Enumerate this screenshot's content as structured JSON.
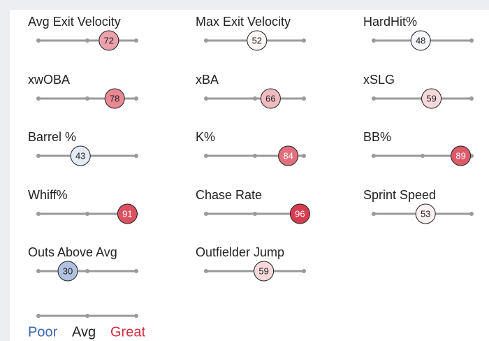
{
  "metrics": [
    {
      "name": "Avg Exit Velocity",
      "value": 72
    },
    {
      "name": "Max Exit Velocity",
      "value": 52
    },
    {
      "name": "HardHit%",
      "value": 48
    },
    {
      "name": "xwOBA",
      "value": 78
    },
    {
      "name": "xBA",
      "value": 66
    },
    {
      "name": "xSLG",
      "value": 59
    },
    {
      "name": "Barrel %",
      "value": 43
    },
    {
      "name": "K%",
      "value": 84
    },
    {
      "name": "BB%",
      "value": 89
    },
    {
      "name": "Whiff%",
      "value": 91
    },
    {
      "name": "Chase Rate",
      "value": 96
    },
    {
      "name": "Sprint Speed",
      "value": 53
    },
    {
      "name": "Outs Above Avg",
      "value": 30
    },
    {
      "name": "Outfielder Jump",
      "value": 59
    }
  ],
  "legend": {
    "poor": "Poor",
    "avg": "Avg",
    "great": "Great"
  }
}
